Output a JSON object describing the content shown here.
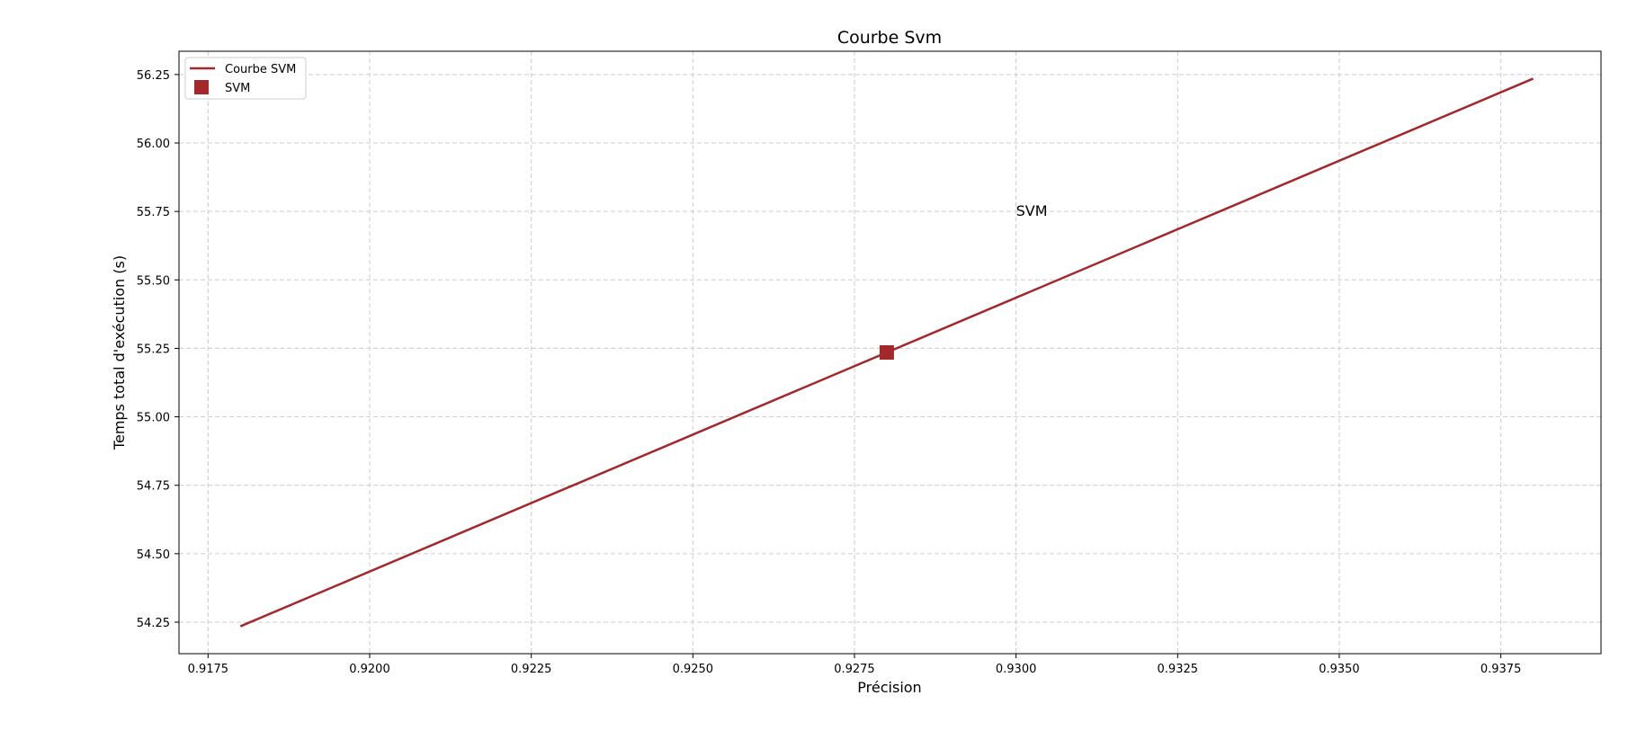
{
  "chart_data": {
    "type": "line",
    "title": "Courbe Svm",
    "xlabel": "Précision",
    "ylabel": "Temps total d'exécution (s)",
    "xlim": [
      0.91705,
      0.93905
    ],
    "ylim": [
      54.135,
      56.335
    ],
    "x_ticks": [
      0.9175,
      0.92,
      0.9225,
      0.925,
      0.9275,
      0.93,
      0.9325,
      0.935,
      0.9375
    ],
    "x_tick_labels": [
      "0.9175",
      "0.9200",
      "0.9225",
      "0.9250",
      "0.9275",
      "0.9300",
      "0.9325",
      "0.9350",
      "0.9375"
    ],
    "y_ticks": [
      54.25,
      54.5,
      54.75,
      55.0,
      55.25,
      55.5,
      55.75,
      56.0,
      56.25
    ],
    "y_tick_labels": [
      "54.25",
      "54.50",
      "54.75",
      "55.00",
      "55.25",
      "55.50",
      "55.75",
      "56.00",
      "56.25"
    ],
    "grid": true,
    "legend_position": "top-left",
    "color": "#a3282c",
    "series": [
      {
        "name": "Courbe SVM",
        "kind": "line",
        "x": [
          0.918,
          0.938
        ],
        "y": [
          54.235,
          56.235
        ]
      },
      {
        "name": "SVM",
        "kind": "marker",
        "marker": "square",
        "x": [
          0.928
        ],
        "y": [
          55.235
        ]
      }
    ],
    "annotations": [
      {
        "text": "SVM",
        "x": 0.93,
        "y": 55.75
      }
    ]
  }
}
